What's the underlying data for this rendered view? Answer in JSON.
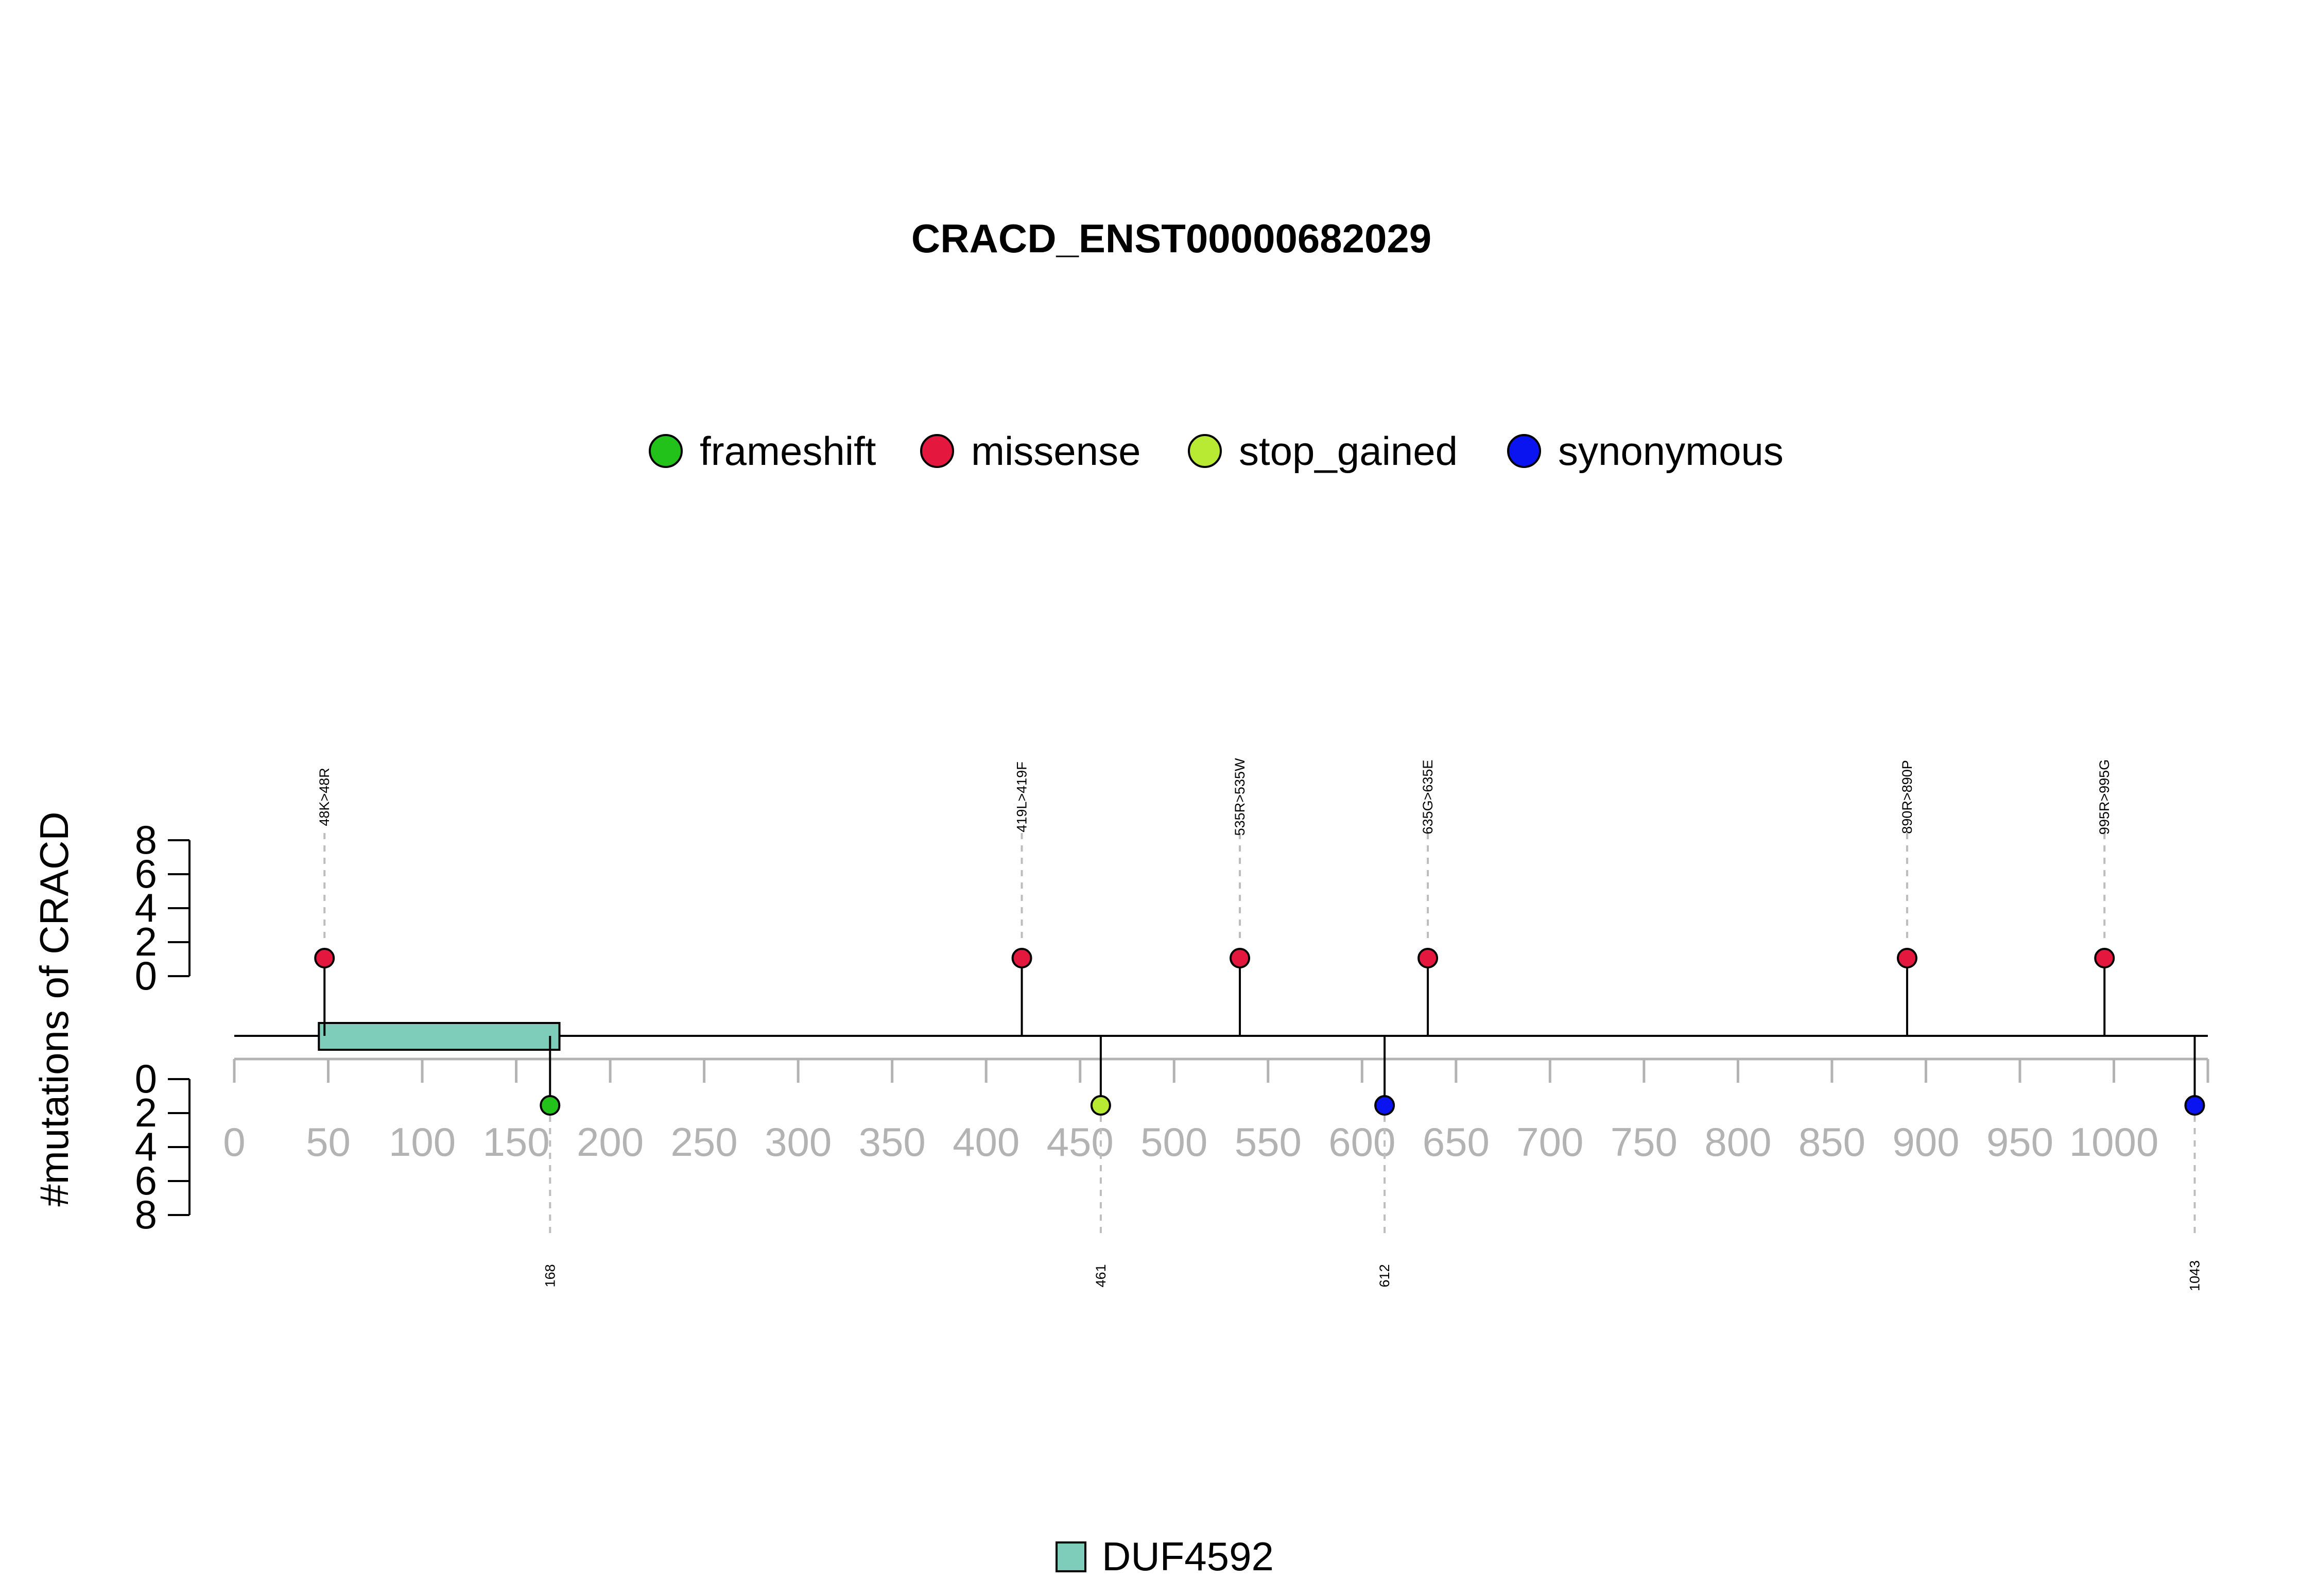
{
  "chart_data": {
    "type": "lollipop",
    "title": "CRACD_ENST00000682029",
    "ylabel": "#mutations of CRACD",
    "protein_length": 1050,
    "x_ticks": [
      0,
      50,
      100,
      150,
      200,
      250,
      300,
      350,
      400,
      450,
      500,
      550,
      600,
      650,
      700,
      750,
      800,
      850,
      900,
      950,
      1000
    ],
    "y_ticks": [
      0,
      2,
      4,
      6,
      8
    ],
    "ylim": [
      0,
      8
    ],
    "legend_top": [
      {
        "label": "frameshift",
        "color": "#22c21a"
      },
      {
        "label": "missense",
        "color": "#e4173f"
      },
      {
        "label": "stop_gained",
        "color": "#b8ea34"
      },
      {
        "label": "synonymous",
        "color": "#0a14f0"
      }
    ],
    "domains": [
      {
        "name": "DUF4592",
        "start": 45,
        "end": 173,
        "color": "#7ecdbb"
      }
    ],
    "mutations_above": [
      {
        "position": 48,
        "label": "48K>48R",
        "count": 1,
        "type": "missense"
      },
      {
        "position": 419,
        "label": "419L>419F",
        "count": 1,
        "type": "missense"
      },
      {
        "position": 535,
        "label": "535R>535W",
        "count": 1,
        "type": "missense"
      },
      {
        "position": 635,
        "label": "635G>635E",
        "count": 1,
        "type": "missense"
      },
      {
        "position": 890,
        "label": "890R>890P",
        "count": 1,
        "type": "missense"
      },
      {
        "position": 995,
        "label": "995R>995G",
        "count": 1,
        "type": "missense"
      }
    ],
    "mutations_below": [
      {
        "position": 168,
        "label": "168",
        "count": 1,
        "type": "frameshift"
      },
      {
        "position": 461,
        "label": "461",
        "count": 1,
        "type": "stop_gained"
      },
      {
        "position": 612,
        "label": "612",
        "count": 1,
        "type": "synonymous"
      },
      {
        "position": 1043,
        "label": "1043",
        "count": 1,
        "type": "synonymous"
      }
    ]
  }
}
